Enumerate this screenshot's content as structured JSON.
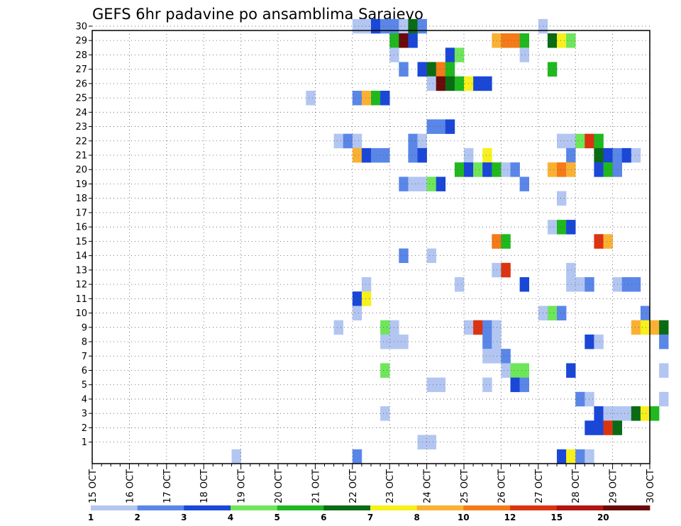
{
  "chart_data": {
    "type": "heatmap",
    "title": "GEFS 6hr padavine po ansamblima Sarajevo",
    "x_tick_labels": [
      "15 OCT",
      "16 OCT",
      "17 OCT",
      "18 OCT",
      "19 OCT",
      "20 OCT",
      "21 OCT",
      "22 OCT",
      "23 OCT",
      "24 OCT",
      "25 OCT",
      "26 OCT",
      "27 OCT",
      "28 OCT",
      "29 OCT",
      "30 OCT"
    ],
    "y_tick_labels": [
      "1",
      "2",
      "3",
      "4",
      "5",
      "6",
      "7",
      "8",
      "9",
      "10",
      "11",
      "12",
      "13",
      "14",
      "15",
      "16",
      "17",
      "18",
      "19",
      "20",
      "21",
      "22",
      "23",
      "24",
      "25",
      "26",
      "27",
      "28",
      "29",
      "30"
    ],
    "x_range_days": [
      15,
      30
    ],
    "y_range_members": [
      0,
      30
    ],
    "grid": "dotted",
    "colorbar": {
      "placement": "bottom",
      "colors": [
        "#b3c6f2",
        "#5a86e8",
        "#1a47d8",
        "#6ee65a",
        "#1fb81f",
        "#0a6b14",
        "#f6f01c",
        "#fab133",
        "#f57a18",
        "#dc3410",
        "#b31410",
        "#6a0a0a"
      ],
      "labels": [
        "1",
        "2",
        "3",
        "4",
        "5",
        "6",
        "7",
        "8",
        "10",
        "12",
        "15",
        "20"
      ]
    },
    "cells": [
      [
        30,
        7.8,
        0
      ],
      [
        30,
        7.9,
        0
      ],
      [
        30,
        8.0,
        2
      ],
      [
        30,
        8.1,
        1
      ],
      [
        30,
        8.2,
        1
      ],
      [
        30,
        8.3,
        0
      ],
      [
        30,
        8.4,
        5
      ],
      [
        30,
        8.5,
        1
      ],
      [
        30,
        9.8,
        0
      ],
      [
        29,
        8.2,
        4
      ],
      [
        29,
        8.3,
        11
      ],
      [
        29,
        8.4,
        2
      ],
      [
        29,
        9.3,
        7
      ],
      [
        29,
        9.4,
        8
      ],
      [
        29,
        9.5,
        8
      ],
      [
        29,
        9.6,
        4
      ],
      [
        29,
        9.9,
        5
      ],
      [
        29,
        10.0,
        6
      ],
      [
        29,
        10.1,
        3
      ],
      [
        28,
        8.2,
        0
      ],
      [
        28,
        8.8,
        2
      ],
      [
        28,
        8.9,
        3
      ],
      [
        28,
        9.6,
        0
      ],
      [
        27,
        8.3,
        1
      ],
      [
        27,
        8.5,
        2
      ],
      [
        27,
        8.6,
        5
      ],
      [
        27,
        8.7,
        8
      ],
      [
        27,
        8.8,
        4
      ],
      [
        27,
        9.9,
        4
      ],
      [
        26,
        8.6,
        0
      ],
      [
        26,
        8.7,
        11
      ],
      [
        26,
        8.8,
        5
      ],
      [
        26,
        8.9,
        4
      ],
      [
        26,
        9.0,
        6
      ],
      [
        26,
        9.1,
        2
      ],
      [
        26,
        9.2,
        2
      ],
      [
        25,
        7.3,
        0
      ],
      [
        25,
        7.8,
        1
      ],
      [
        25,
        7.9,
        7
      ],
      [
        25,
        8.0,
        4
      ],
      [
        25,
        8.1,
        2
      ],
      [
        23,
        8.6,
        1
      ],
      [
        23,
        8.7,
        1
      ],
      [
        23,
        8.8,
        2
      ],
      [
        22,
        7.6,
        0
      ],
      [
        22,
        7.7,
        1
      ],
      [
        22,
        7.8,
        0
      ],
      [
        22,
        8.4,
        1
      ],
      [
        22,
        8.5,
        0
      ],
      [
        22,
        10.0,
        0
      ],
      [
        22,
        10.1,
        0
      ],
      [
        22,
        10.2,
        3
      ],
      [
        22,
        10.3,
        9
      ],
      [
        22,
        10.4,
        4
      ],
      [
        21,
        7.8,
        7
      ],
      [
        21,
        7.9,
        2
      ],
      [
        21,
        8.0,
        1
      ],
      [
        21,
        8.1,
        1
      ],
      [
        21,
        8.4,
        1
      ],
      [
        21,
        8.5,
        2
      ],
      [
        21,
        9.0,
        0
      ],
      [
        21,
        9.2,
        6
      ],
      [
        21,
        10.1,
        1
      ],
      [
        21,
        10.4,
        5
      ],
      [
        21,
        10.5,
        2
      ],
      [
        21,
        10.6,
        1
      ],
      [
        21,
        10.7,
        2
      ],
      [
        21,
        10.8,
        0
      ],
      [
        20,
        8.9,
        4
      ],
      [
        20,
        9.0,
        2
      ],
      [
        20,
        9.1,
        3
      ],
      [
        20,
        9.2,
        2
      ],
      [
        20,
        9.3,
        4
      ],
      [
        20,
        9.4,
        0
      ],
      [
        20,
        9.5,
        1
      ],
      [
        20,
        9.9,
        7
      ],
      [
        20,
        10.0,
        8
      ],
      [
        20,
        10.1,
        7
      ],
      [
        20,
        10.4,
        2
      ],
      [
        20,
        10.5,
        4
      ],
      [
        20,
        10.6,
        1
      ],
      [
        19,
        8.3,
        1
      ],
      [
        19,
        8.4,
        0
      ],
      [
        19,
        8.5,
        0
      ],
      [
        19,
        8.6,
        3
      ],
      [
        19,
        8.7,
        2
      ],
      [
        19,
        9.6,
        1
      ],
      [
        18,
        10.0,
        0
      ],
      [
        16,
        9.9,
        0
      ],
      [
        16,
        10.0,
        4
      ],
      [
        16,
        10.1,
        2
      ],
      [
        15,
        9.3,
        8
      ],
      [
        15,
        9.4,
        4
      ],
      [
        15,
        10.4,
        9
      ],
      [
        15,
        10.5,
        7
      ],
      [
        14,
        8.3,
        1
      ],
      [
        14,
        8.6,
        0
      ],
      [
        13,
        9.3,
        0
      ],
      [
        13,
        9.4,
        9
      ],
      [
        13,
        10.1,
        0
      ],
      [
        12,
        7.9,
        0
      ],
      [
        12,
        8.9,
        0
      ],
      [
        12,
        9.6,
        2
      ],
      [
        12,
        10.1,
        0
      ],
      [
        12,
        10.2,
        0
      ],
      [
        12,
        10.3,
        1
      ],
      [
        12,
        10.6,
        0
      ],
      [
        12,
        10.7,
        1
      ],
      [
        12,
        10.8,
        1
      ],
      [
        11,
        7.8,
        2
      ],
      [
        11,
        7.9,
        6
      ],
      [
        10,
        7.8,
        0
      ],
      [
        10,
        9.8,
        0
      ],
      [
        10,
        9.9,
        3
      ],
      [
        10,
        10.0,
        1
      ],
      [
        10,
        10.9,
        1
      ],
      [
        9,
        7.6,
        0
      ],
      [
        9,
        8.1,
        3
      ],
      [
        9,
        8.2,
        0
      ],
      [
        9,
        9.0,
        0
      ],
      [
        9,
        9.1,
        9
      ],
      [
        9,
        9.2,
        1
      ],
      [
        9,
        9.3,
        0
      ],
      [
        9,
        10.8,
        7
      ],
      [
        9,
        10.9,
        6
      ],
      [
        9,
        11.0,
        7
      ],
      [
        9,
        11.1,
        5
      ],
      [
        8,
        8.1,
        0
      ],
      [
        8,
        8.2,
        0
      ],
      [
        8,
        8.3,
        0
      ],
      [
        8,
        9.2,
        1
      ],
      [
        8,
        9.3,
        0
      ],
      [
        8,
        10.3,
        2
      ],
      [
        8,
        10.4,
        0
      ],
      [
        8,
        11.1,
        1
      ],
      [
        7,
        9.2,
        0
      ],
      [
        7,
        9.3,
        0
      ],
      [
        7,
        9.4,
        1
      ],
      [
        6,
        8.1,
        3
      ],
      [
        6,
        9.4,
        0
      ],
      [
        6,
        9.5,
        3
      ],
      [
        6,
        9.6,
        3
      ],
      [
        6,
        10.1,
        2
      ],
      [
        6,
        11.1,
        0
      ],
      [
        5,
        8.6,
        0
      ],
      [
        5,
        8.7,
        0
      ],
      [
        5,
        9.2,
        0
      ],
      [
        5,
        9.5,
        2
      ],
      [
        5,
        9.6,
        1
      ],
      [
        4,
        10.2,
        1
      ],
      [
        4,
        10.3,
        0
      ],
      [
        4,
        11.1,
        0
      ],
      [
        3,
        8.1,
        0
      ],
      [
        3,
        10.4,
        2
      ],
      [
        3,
        10.5,
        0
      ],
      [
        3,
        10.6,
        0
      ],
      [
        3,
        10.7,
        0
      ],
      [
        3,
        10.8,
        5
      ],
      [
        3,
        10.9,
        6
      ],
      [
        3,
        11.0,
        4
      ],
      [
        2,
        10.3,
        2
      ],
      [
        2,
        10.4,
        2
      ],
      [
        2,
        10.5,
        9
      ],
      [
        2,
        10.6,
        5
      ],
      [
        1,
        8.5,
        0
      ],
      [
        1,
        8.6,
        0
      ],
      [
        0,
        6.5,
        0
      ],
      [
        0,
        7.8,
        1
      ],
      [
        0,
        10.0,
        2
      ],
      [
        0,
        10.1,
        6
      ],
      [
        0,
        10.2,
        1
      ],
      [
        0,
        10.3,
        0
      ]
    ]
  }
}
